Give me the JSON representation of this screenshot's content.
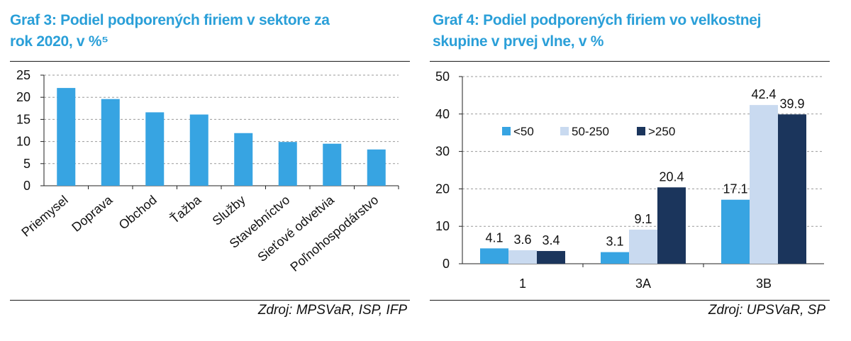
{
  "colors": {
    "title": "#2a9fd8",
    "bar_light_blue": "#37a4e2",
    "bar_pale": "#c9daf0",
    "bar_navy": "#1b355c"
  },
  "left": {
    "title_line1": "Graf 3: Podiel podporených firiem v sektore za",
    "title_line2": "rok 2020, v %⁵",
    "source": "Zdroj: MPSVaR, ISP, IFP"
  },
  "right": {
    "title_line1": "Graf 4: Podiel podporených firiem vo velkostnej",
    "title_line2": "skupine v prvej vlne, v %",
    "source": "Zdroj: UPSVaR, SP"
  },
  "chart_data": [
    {
      "type": "bar",
      "title": "Graf 3: Podiel podporených firiem v sektore za rok 2020, v %⁵",
      "categories": [
        "Priemysel",
        "Doprava",
        "Obchod",
        "Ťažba",
        "Služby",
        "Stavebníctvo",
        "Sieťové odvetvia",
        "Poľnohospodárstvo"
      ],
      "values": [
        22.1,
        19.6,
        16.6,
        16.1,
        11.9,
        9.9,
        9.5,
        8.2
      ],
      "yticks": [
        "0",
        "5",
        "10",
        "15",
        "20",
        "25"
      ],
      "ylim": [
        0,
        25
      ],
      "color": "#37a4e2",
      "grid": true
    },
    {
      "type": "bar",
      "title": "Graf 4: Podiel podporených firiem vo velkostnej skupine v prvej vlne, v %",
      "categories": [
        "1",
        "3A",
        "3B"
      ],
      "series": [
        {
          "name": "<50",
          "values": [
            4.1,
            3.1,
            17.1
          ],
          "labels": [
            "4.1",
            "3.1",
            "17.1"
          ],
          "color": "#37a4e2"
        },
        {
          "name": "50-250",
          "values": [
            3.6,
            9.1,
            42.4
          ],
          "labels": [
            "3.6",
            "9.1",
            "42.4"
          ],
          "color": "#c9daf0"
        },
        {
          "name": ">250",
          "values": [
            3.4,
            20.4,
            39.9
          ],
          "labels": [
            "3.4",
            "20.4",
            "39.9"
          ],
          "color": "#1b355c"
        }
      ],
      "yticks": [
        "0",
        "10",
        "20",
        "30",
        "40",
        "50"
      ],
      "ylim": [
        0,
        50
      ],
      "legend": "top-left inside plot",
      "grid": true
    }
  ]
}
